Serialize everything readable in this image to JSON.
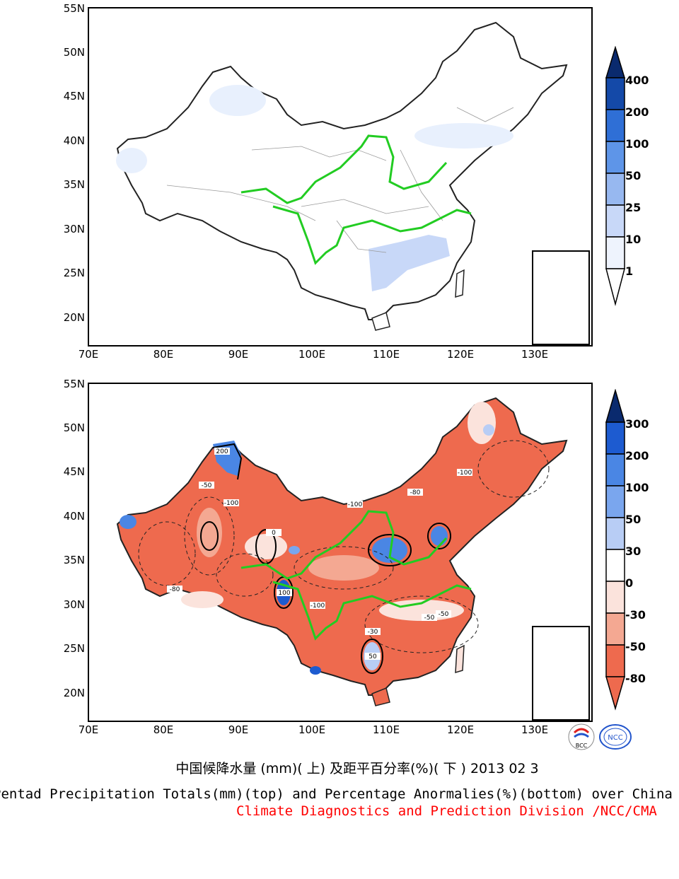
{
  "axes": {
    "lat_labels": [
      "55N",
      "50N",
      "45N",
      "40N",
      "35N",
      "30N",
      "25N",
      "20N"
    ],
    "lon_labels": [
      "70E",
      "80E",
      "90E",
      "100E",
      "110E",
      "120E",
      "130E"
    ]
  },
  "top_panel": {
    "colorbar_labels": [
      "400",
      "200",
      "100",
      "50",
      "25",
      "10",
      "1"
    ],
    "colors": [
      "#0a2a6e",
      "#1449a8",
      "#2f6fd6",
      "#5e95e8",
      "#97b8f0",
      "#c8d8f8",
      "#eef3fd"
    ]
  },
  "bottom_panel": {
    "colorbar_labels": [
      "300",
      "200",
      "100",
      "50",
      "30",
      "0",
      "-30",
      "-50",
      "-80"
    ],
    "colors": [
      "#0a2a6e",
      "#1d5bd0",
      "#4a86e4",
      "#7aa6ee",
      "#b8cdf5",
      "#ffffff",
      "#fbe3dc",
      "#f4a892",
      "#ee6a4e"
    ],
    "contour_labels": [
      "-100",
      "-80",
      "-50",
      "-30",
      "0",
      "30",
      "50",
      "100",
      "200"
    ]
  },
  "captions": {
    "chinese": "中国候降水量 (mm)( 上) 及距平百分率(%)( 下 ) 2013 02 3",
    "english": "Pentad Precipitation Totals(mm)(top) and Percentage Anormalies(%)(bottom) over China",
    "organization": "Climate Diagnostics and Prediction Division /NCC/CMA"
  },
  "logos": [
    "BCC",
    "NCC"
  ]
}
